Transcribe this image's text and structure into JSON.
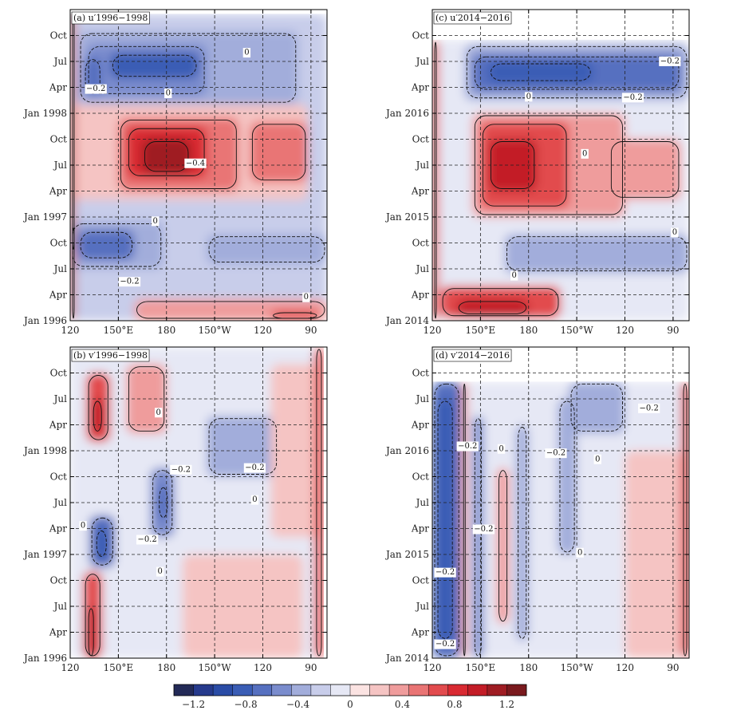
{
  "chart_data": {
    "type": "heatmap",
    "panels": [
      {
        "id": "a",
        "label": "(a) u′1996−1998",
        "ytick_labels": [
          "Jan  1996",
          "Apr",
          "Jul",
          "Oct",
          "Jan  1997",
          "Apr",
          "Jul",
          "Oct",
          "Jan  1998",
          "Apr",
          "Jul",
          "Oct"
        ],
        "xtick_labels": [
          "120",
          "150°E",
          "180",
          "150°W",
          "120",
          "90"
        ],
        "contour_labels": [
          {
            "text": "−0.2",
            "lon": 136,
            "month": 26.9
          },
          {
            "text": "0",
            "lon": 181,
            "month": 26.4
          },
          {
            "text": "0",
            "lon": 230,
            "month": 31.1
          },
          {
            "text": "−0.4",
            "lon": 198,
            "month": 18.3
          },
          {
            "text": "0",
            "lon": 173,
            "month": 11.6
          },
          {
            "text": "−0.2",
            "lon": 157,
            "month": 4.6
          },
          {
            "text": "0",
            "lon": 267,
            "month": 2.8
          }
        ],
        "regions": [
          {
            "lon": [
              120,
              280
            ],
            "month": [
              0,
              35.5
            ],
            "value": -0.15
          },
          {
            "lon": [
              125,
              262
            ],
            "month": [
              25,
              33.5
            ],
            "value": -0.3
          },
          {
            "lon": [
              130,
              205
            ],
            "month": [
              26,
              32
            ],
            "value": -0.5
          },
          {
            "lon": [
              145,
              200
            ],
            "month": [
              28,
              31
            ],
            "value": -0.7
          },
          {
            "lon": [
              128,
              140
            ],
            "month": [
              26,
              30.5
            ],
            "value": -0.6
          },
          {
            "lon": [
              120,
              268
            ],
            "month": [
              14,
              25
            ],
            "value": 0.25
          },
          {
            "lon": [
              150,
              225
            ],
            "month": [
              15,
              23.5
            ],
            "value": 0.5
          },
          {
            "lon": [
              155,
              205
            ],
            "month": [
              16.5,
              22.5
            ],
            "value": 0.75
          },
          {
            "lon": [
              165,
              195
            ],
            "month": [
              17,
              21
            ],
            "value": 0.95
          },
          {
            "lon": [
              232,
              268
            ],
            "month": [
              16,
              23
            ],
            "value": 0.45
          },
          {
            "lon": [
              120,
              178
            ],
            "month": [
              6,
              11.5
            ],
            "value": -0.4
          },
          {
            "lon": [
              125,
              160
            ],
            "month": [
              7,
              10.5
            ],
            "value": -0.55
          },
          {
            "lon": [
              205,
              280
            ],
            "month": [
              6.5,
              10
            ],
            "value": -0.3
          },
          {
            "lon": [
              160,
              280
            ],
            "month": [
              0,
              2.5
            ],
            "value": 0.3
          },
          {
            "lon": [
              245,
              275
            ],
            "month": [
              0,
              1.2
            ],
            "value": 0.6
          },
          {
            "lon": [
              120,
              123
            ],
            "month": [
              0,
              35.5
            ],
            "value": 0.8
          },
          {
            "lon": [
              120,
              123
            ],
            "month": [
              8,
              11
            ],
            "value": 1.0
          }
        ]
      },
      {
        "id": "c",
        "label": "(c) u′2014−2016",
        "ytick_labels": [
          "Jan  2014",
          "Apr",
          "Jul",
          "Oct",
          "Jan  2015",
          "Apr",
          "Jul",
          "Oct",
          "Jan  2016",
          "Apr",
          "Jul",
          "Oct"
        ],
        "xtick_labels": [
          "120",
          "150°E",
          "180",
          "150°W",
          "120",
          "90"
        ],
        "contour_labels": [
          {
            "text": "−0.2",
            "lon": 268,
            "month": 30.1
          },
          {
            "text": "0",
            "lon": 180,
            "month": 26.0
          },
          {
            "text": "−0.2",
            "lon": 245,
            "month": 25.9
          },
          {
            "text": "0",
            "lon": 215,
            "month": 19.4
          },
          {
            "text": "0",
            "lon": 271,
            "month": 10.3
          },
          {
            "text": "0",
            "lon": 171,
            "month": 5.3
          }
        ],
        "regions": [
          {
            "lon": [
              120,
              280
            ],
            "month": [
              0,
              32.5
            ],
            "value": -0.1
          },
          {
            "lon": [
              140,
              280
            ],
            "month": [
              25.5,
              32
            ],
            "value": -0.35
          },
          {
            "lon": [
              145,
              275
            ],
            "month": [
              26.5,
              30.8
            ],
            "value": -0.6
          },
          {
            "lon": [
              155,
              220
            ],
            "month": [
              27.5,
              30
            ],
            "value": -0.75
          },
          {
            "lon": [
              145,
              240
            ],
            "month": [
              12,
              24
            ],
            "value": 0.3
          },
          {
            "lon": [
              150,
              205
            ],
            "month": [
              13,
              23
            ],
            "value": 0.6
          },
          {
            "lon": [
              155,
              185
            ],
            "month": [
              15,
              21
            ],
            "value": 0.8
          },
          {
            "lon": [
              230,
              275
            ],
            "month": [
              14,
              21
            ],
            "value": 0.35
          },
          {
            "lon": [
              165,
              280
            ],
            "month": [
              5.5,
              10
            ],
            "value": -0.35
          },
          {
            "lon": [
              125,
              200
            ],
            "month": [
              0.3,
              4
            ],
            "value": 0.6
          },
          {
            "lon": [
              135,
              180
            ],
            "month": [
              0.5,
              2.5
            ],
            "value": 0.85
          },
          {
            "lon": [
              120,
              124
            ],
            "month": [
              0,
              32.5
            ],
            "value": 0.6
          }
        ]
      },
      {
        "id": "b",
        "label": "(b) v′1996−1998",
        "ytick_labels": [
          "Jan  1996",
          "Apr",
          "Jul",
          "Oct",
          "Jan  1997",
          "Apr",
          "Jul",
          "Oct",
          "Jan  1998",
          "Apr",
          "Jul",
          "Oct"
        ],
        "xtick_labels": [
          "120",
          "150°E",
          "180",
          "150°W",
          "120",
          "90"
        ],
        "contour_labels": [
          {
            "text": "0",
            "lon": 175,
            "month": 28.5
          },
          {
            "text": "0",
            "lon": 128,
            "month": 15.4
          },
          {
            "text": "−0.2",
            "lon": 189,
            "month": 21.9
          },
          {
            "text": "−0.2",
            "lon": 235,
            "month": 22.1
          },
          {
            "text": "0",
            "lon": 235,
            "month": 18.4
          },
          {
            "text": "−0.2",
            "lon": 168,
            "month": 13.8
          },
          {
            "text": "0",
            "lon": 176,
            "month": 10.1
          }
        ],
        "regions": [
          {
            "lon": [
              120,
              275
            ],
            "month": [
              0,
              36
            ],
            "value": -0.1
          },
          {
            "lon": [
              130,
              145
            ],
            "month": [
              25,
              33
            ],
            "value": 0.55
          },
          {
            "lon": [
              133,
              141
            ],
            "month": [
              26,
              30
            ],
            "value": 0.8
          },
          {
            "lon": [
              128,
              140
            ],
            "month": [
              0,
              10
            ],
            "value": 0.55
          },
          {
            "lon": [
              130,
              136
            ],
            "month": [
              0,
              6
            ],
            "value": 0.8
          },
          {
            "lon": [
              132,
              148
            ],
            "month": [
              10.5,
              16.5
            ],
            "value": -0.55
          },
          {
            "lon": [
              135,
              144
            ],
            "month": [
              11.5,
              15
            ],
            "value": -0.8
          },
          {
            "lon": [
              170,
              185
            ],
            "month": [
              14,
              22
            ],
            "value": -0.45
          },
          {
            "lon": [
              174,
              182
            ],
            "month": [
              16,
              20
            ],
            "value": -0.65
          },
          {
            "lon": [
              205,
              250
            ],
            "month": [
              21,
              28
            ],
            "value": -0.35
          },
          {
            "lon": [
              155,
              180
            ],
            "month": [
              26,
              34
            ],
            "value": 0.35
          },
          {
            "lon": [
              190,
              265
            ],
            "month": [
              0,
              12
            ],
            "value": 0.2
          },
          {
            "lon": [
              245,
              275
            ],
            "month": [
              14,
              34
            ],
            "value": 0.2
          },
          {
            "lon": [
              272,
              278
            ],
            "month": [
              0,
              36
            ],
            "value": 0.6
          }
        ]
      },
      {
        "id": "d",
        "label": "(d) v′2014−2016",
        "ytick_labels": [
          "Jan  2014",
          "Apr",
          "Jul",
          "Oct",
          "Jan  2015",
          "Apr",
          "Jul",
          "Oct",
          "Jan  2016",
          "Apr",
          "Jul",
          "Oct"
        ],
        "xtick_labels": [
          "120",
          "150°E",
          "180",
          "150°W",
          "120",
          "90"
        ],
        "contour_labels": [
          {
            "text": "−0.2",
            "lon": 255,
            "month": 29.0
          },
          {
            "text": "−0.2",
            "lon": 142,
            "month": 24.6
          },
          {
            "text": "0",
            "lon": 163,
            "month": 24.3
          },
          {
            "text": "−0.2",
            "lon": 197,
            "month": 23.8
          },
          {
            "text": "0",
            "lon": 223,
            "month": 23.1
          },
          {
            "text": "−0.2",
            "lon": 152,
            "month": 15.0
          },
          {
            "text": "0",
            "lon": 212,
            "month": 12.3
          },
          {
            "text": "−0.2",
            "lon": 128,
            "month": 10.0
          },
          {
            "text": "−0.2",
            "lon": 128,
            "month": 1.7
          }
        ],
        "regions": [
          {
            "lon": [
              120,
              280
            ],
            "month": [
              0,
              32
            ],
            "value": -0.1
          },
          {
            "lon": [
              120,
              138
            ],
            "month": [
              0,
              32
            ],
            "value": -0.55
          },
          {
            "lon": [
              122,
              134
            ],
            "month": [
              2,
              30
            ],
            "value": -0.8
          },
          {
            "lon": [
              145,
              152
            ],
            "month": [
              0,
              28
            ],
            "value": -0.45
          },
          {
            "lon": [
              172,
              180
            ],
            "month": [
              2,
              27
            ],
            "value": -0.35
          },
          {
            "lon": [
              198,
              210
            ],
            "month": [
              12,
              30
            ],
            "value": -0.3
          },
          {
            "lon": [
              205,
              240
            ],
            "month": [
              26,
              32
            ],
            "value": -0.4
          },
          {
            "lon": [
              160,
              168
            ],
            "month": [
              4,
              22
            ],
            "value": 0.35
          },
          {
            "lon": [
              240,
              275
            ],
            "month": [
              0,
              24
            ],
            "value": 0.2
          },
          {
            "lon": [
              275,
              280
            ],
            "month": [
              0,
              32
            ],
            "value": 0.7
          },
          {
            "lon": [
              138,
              142
            ],
            "month": [
              0,
              32
            ],
            "value": 0.35
          }
        ]
      }
    ],
    "colorbar": {
      "ticks": [
        -1.2,
        -0.8,
        -0.4,
        0,
        0.4,
        0.8,
        1.2
      ],
      "tick_labels": [
        "−1.2",
        "−0.8",
        "−0.4",
        "0",
        "0.4",
        "0.8",
        "1.2"
      ],
      "colors": [
        "#232a57",
        "#263a8c",
        "#2a4ca6",
        "#3a5db5",
        "#5670c0",
        "#7a8ccd",
        "#a2addb",
        "#c8cdea",
        "#e6e8f5",
        "#fbe3e2",
        "#f5c4c3",
        "#ef9c9c",
        "#e97474",
        "#e24b4e",
        "#d92a32",
        "#c31d27",
        "#9f1d23",
        "#7a1a1e"
      ]
    }
  }
}
